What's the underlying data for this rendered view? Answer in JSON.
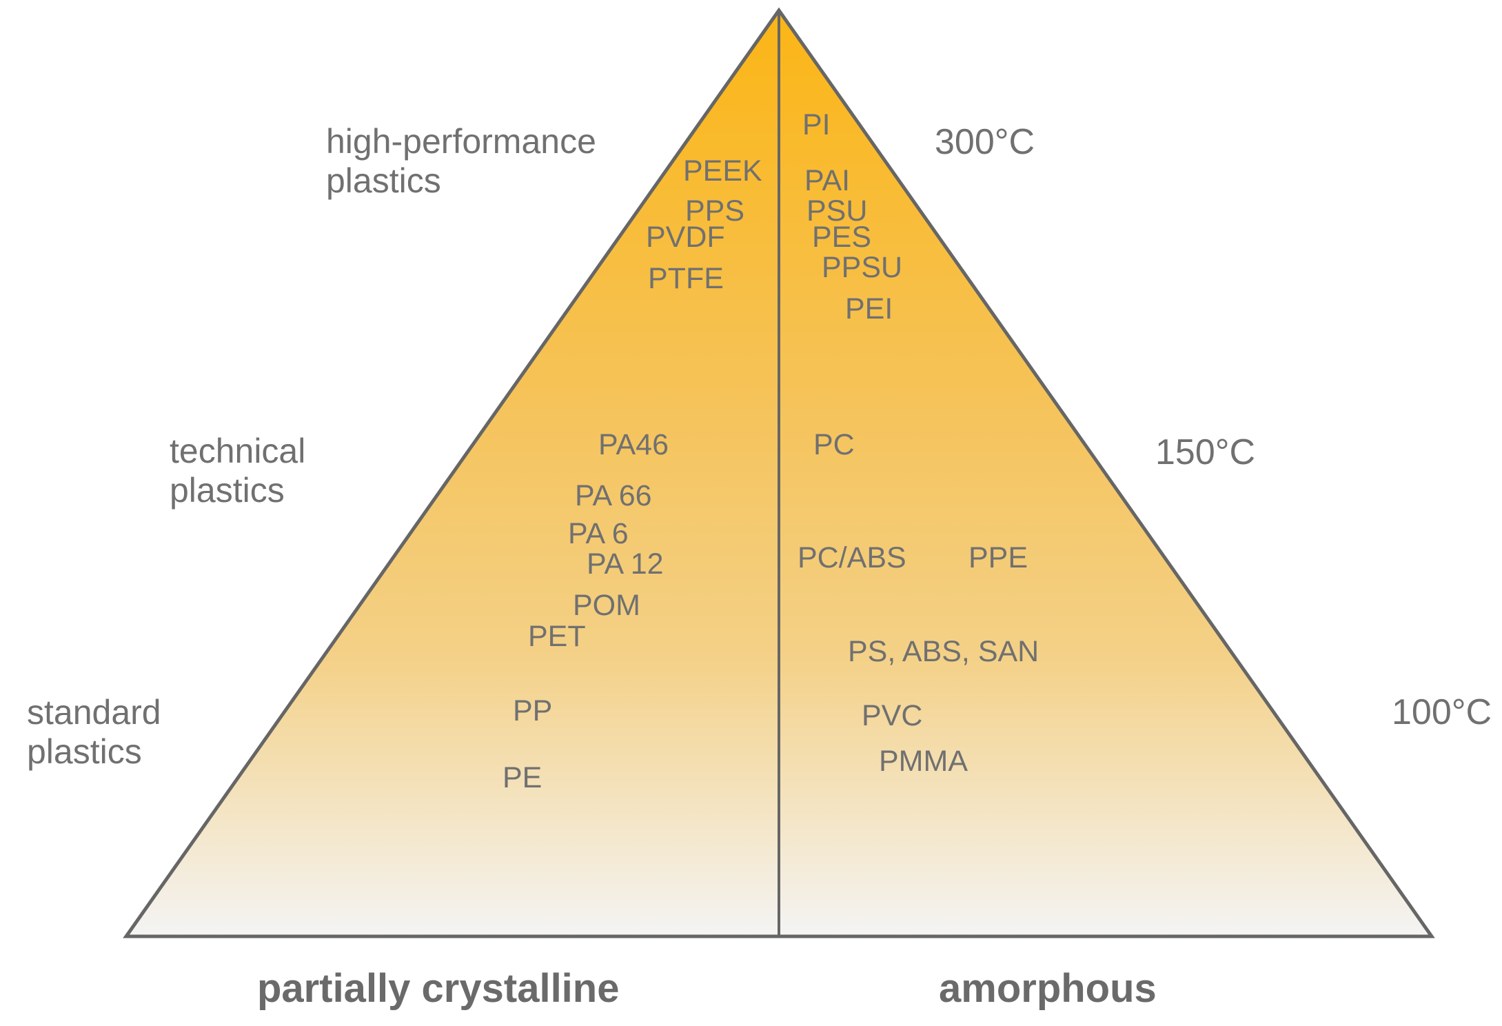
{
  "diagram": {
    "gradient": {
      "top_color": "#FBB515",
      "mid_color": "#F5C45E",
      "bottom_color": "#F4F4F4",
      "outline_color": "#666666"
    },
    "categories": {
      "high_performance": [
        "high-performance",
        "plastics"
      ],
      "technical": [
        "technical",
        "plastics"
      ],
      "standard": [
        "standard",
        "plastics"
      ]
    },
    "temperatures": {
      "high": "300°C",
      "mid": "150°C",
      "low": "100°C"
    },
    "partially_crystalline": {
      "label": "partially crystalline",
      "polymers": {
        "peek": "PEEK",
        "pps": "PPS",
        "pvdf": "PVDF",
        "ptfe": "PTFE",
        "pa46": "PA46",
        "pa66": "PA 66",
        "pa6": "PA 6",
        "pa12": "PA 12",
        "pom": "POM",
        "pet": "PET",
        "pp": "PP",
        "pe": "PE"
      }
    },
    "amorphous": {
      "label": "amorphous",
      "polymers": {
        "pi": "PI",
        "pai": "PAI",
        "psu": "PSU",
        "pes": "PES",
        "ppsu": "PPSU",
        "pei": "PEI",
        "pc": "PC",
        "pc_abs": "PC/ABS",
        "ppe": "PPE",
        "ps_abs_san": "PS, ABS, SAN",
        "pvc": "PVC",
        "pmma": "PMMA"
      }
    }
  }
}
